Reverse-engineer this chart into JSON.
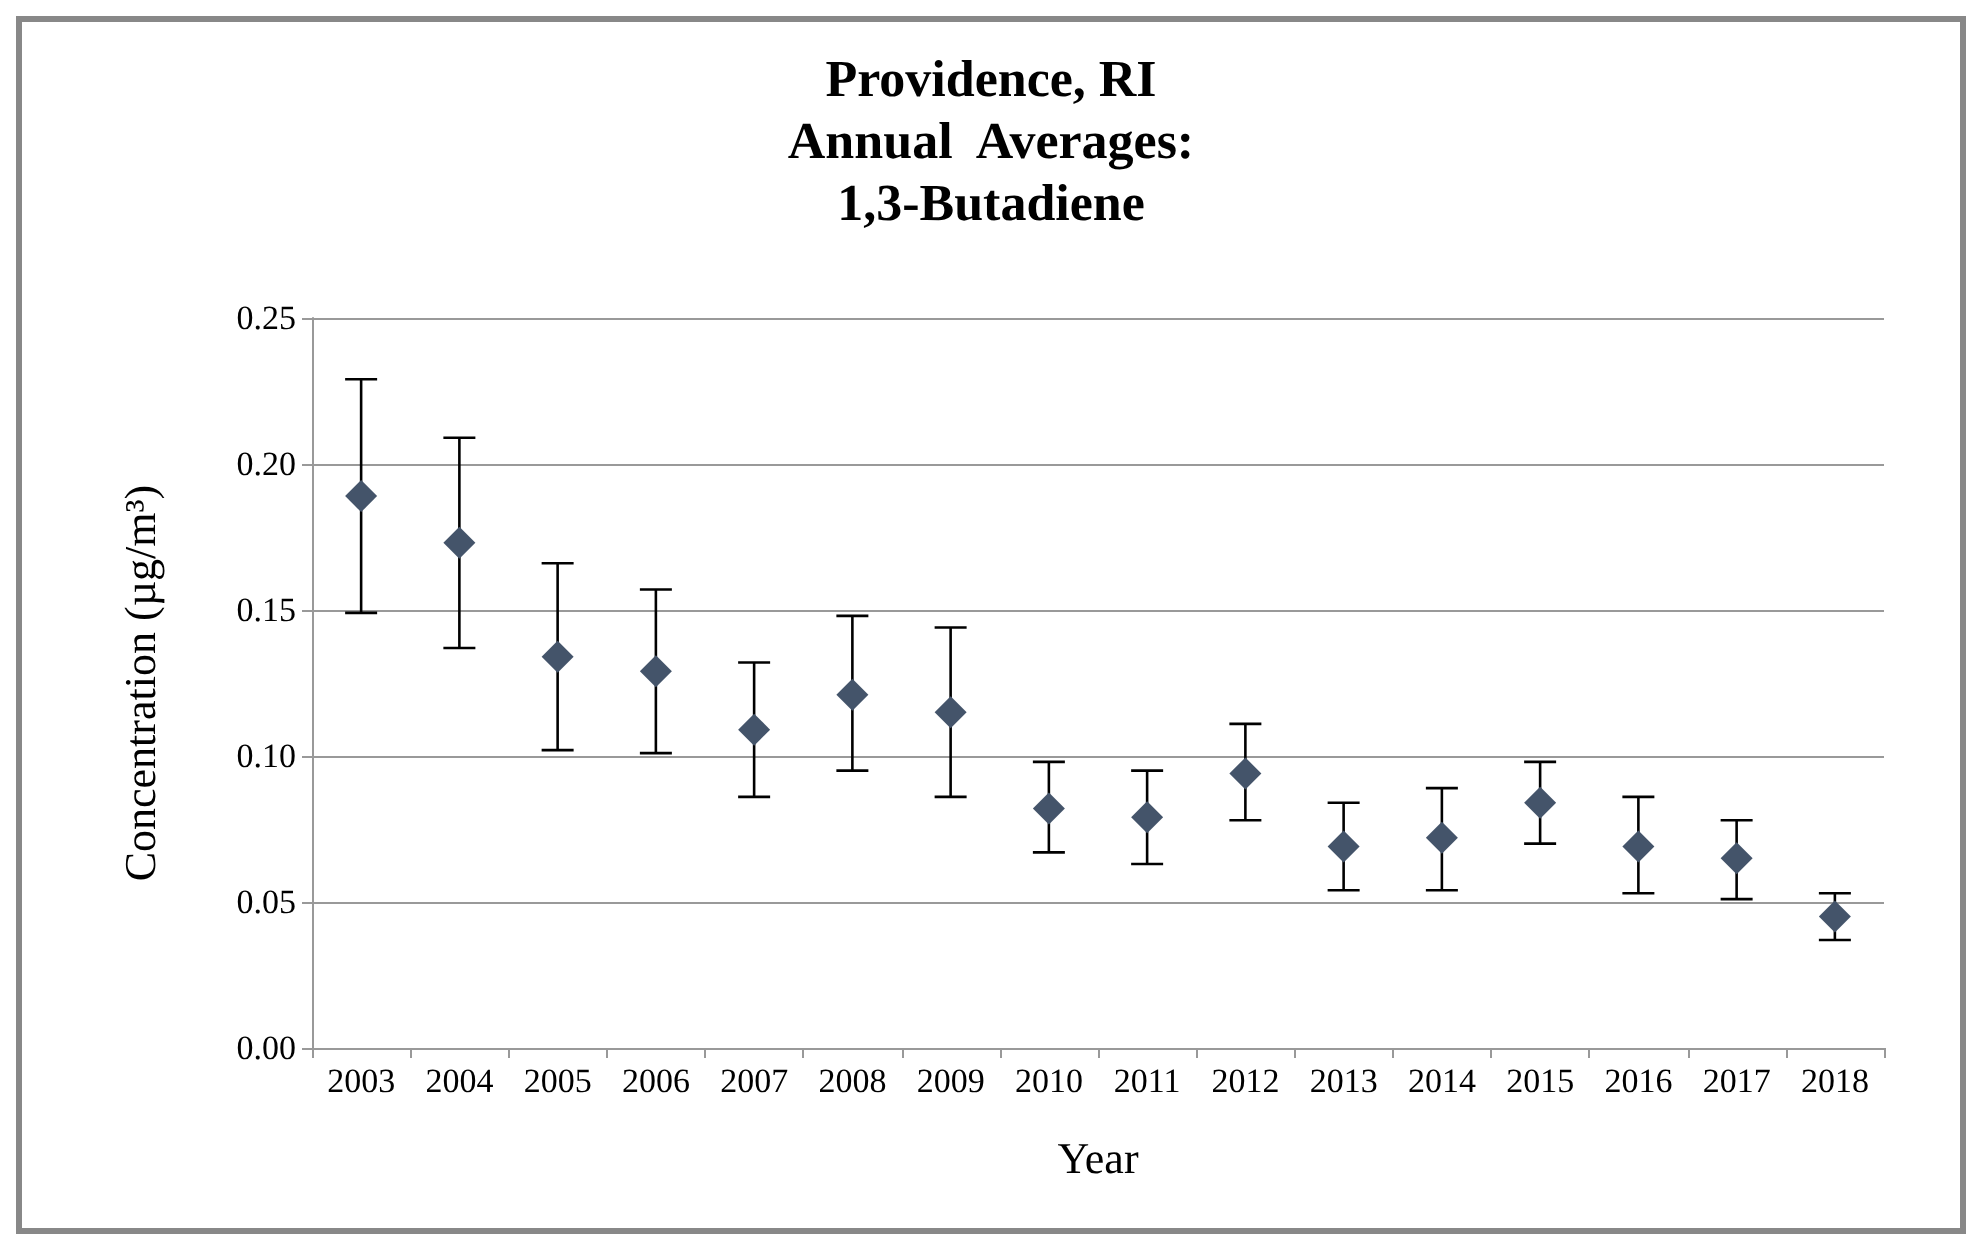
{
  "chart_data": {
    "type": "scatter",
    "title": "Providence, RI\nAnnual  Averages:\n1,3-Butadiene",
    "xlabel": "Year",
    "ylabel": "Concentration (µg/m³)",
    "categories": [
      "2003",
      "2004",
      "2005",
      "2006",
      "2007",
      "2008",
      "2009",
      "2010",
      "2011",
      "2012",
      "2013",
      "2014",
      "2015",
      "2016",
      "2017",
      "2018"
    ],
    "values": [
      0.189,
      0.173,
      0.134,
      0.129,
      0.109,
      0.121,
      0.115,
      0.082,
      0.079,
      0.094,
      0.069,
      0.072,
      0.084,
      0.069,
      0.065,
      0.045
    ],
    "errors": [
      [
        0.149,
        0.229
      ],
      [
        0.137,
        0.209
      ],
      [
        0.102,
        0.166
      ],
      [
        0.101,
        0.157
      ],
      [
        0.086,
        0.132
      ],
      [
        0.095,
        0.148
      ],
      [
        0.086,
        0.144
      ],
      [
        0.067,
        0.098
      ],
      [
        0.063,
        0.095
      ],
      [
        0.078,
        0.111
      ],
      [
        0.054,
        0.084
      ],
      [
        0.054,
        0.089
      ],
      [
        0.07,
        0.098
      ],
      [
        0.053,
        0.086
      ],
      [
        0.051,
        0.078
      ],
      [
        0.037,
        0.053
      ]
    ],
    "color": "#44546a",
    "marker": "diamond",
    "ylim": [
      0,
      0.25
    ],
    "yticks": [
      {
        "value": 0,
        "label": "0.00"
      },
      {
        "value": 0.05,
        "label": "0.05"
      },
      {
        "value": 0.1,
        "label": "0.10"
      },
      {
        "value": 0.15,
        "label": "0.15"
      },
      {
        "value": 0.2,
        "label": "0.20"
      },
      {
        "value": 0.25,
        "label": "0.25"
      }
    ],
    "grid": "y"
  }
}
